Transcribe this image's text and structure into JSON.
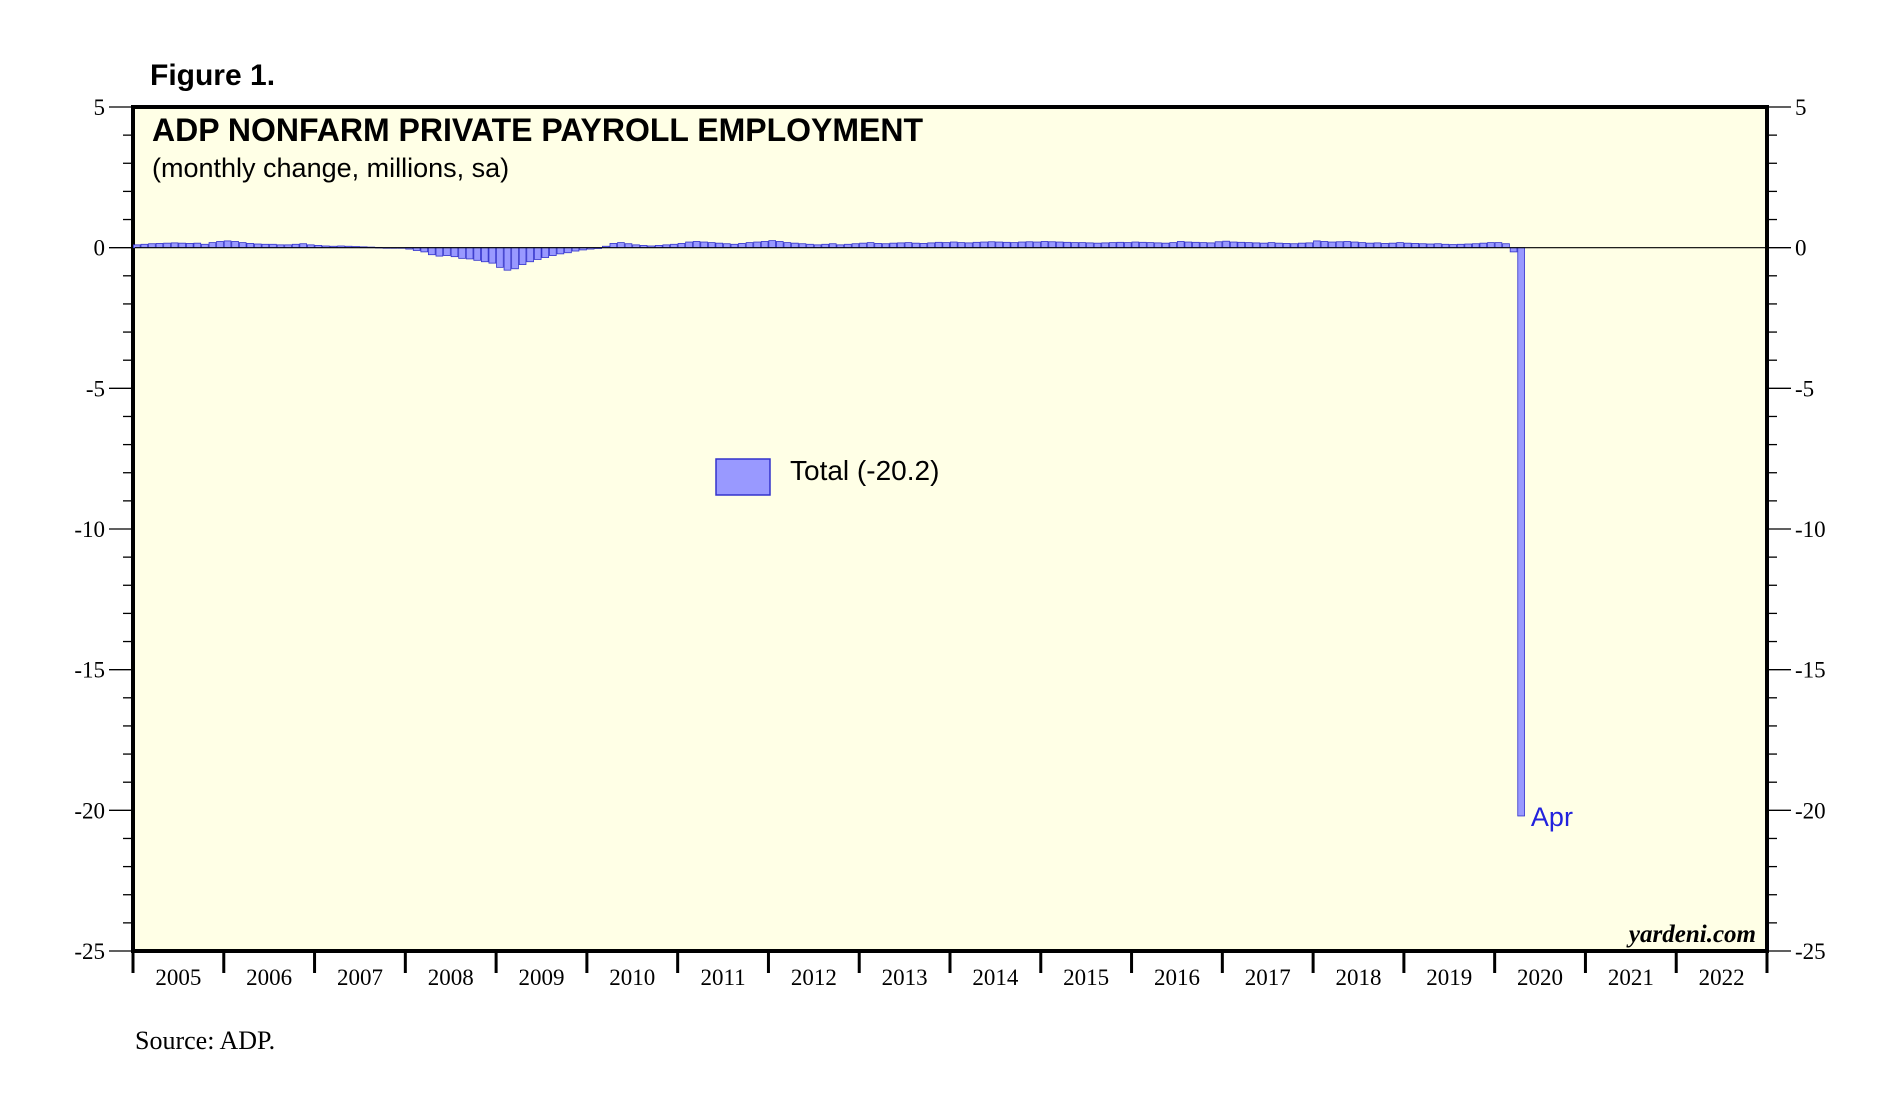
{
  "figure_label": "Figure 1.",
  "source": "Source: ADP.",
  "watermark": "yardeni.com",
  "colors": {
    "plot_background": "#ffffe6",
    "bar_fill": "#9999ff",
    "bar_stroke": "#3333cc",
    "annotation": "#2222dd",
    "axis": "#000000"
  },
  "chart_data": {
    "type": "bar",
    "title": "ADP NONFARM PRIVATE PAYROLL EMPLOYMENT",
    "subtitle": "(monthly change, millions, sa)",
    "xlabel": "",
    "ylabel": "",
    "ylim": [
      -25,
      5
    ],
    "yticks": [
      5,
      0,
      -5,
      -10,
      -15,
      -20,
      -25
    ],
    "ytick_labels": [
      "5",
      "0",
      "-5",
      "-10",
      "-15",
      "-20",
      "-25"
    ],
    "x_range": [
      "2005-01",
      "2022-12"
    ],
    "year_labels": [
      "2005",
      "2006",
      "2007",
      "2008",
      "2009",
      "2010",
      "2011",
      "2012",
      "2013",
      "2014",
      "2015",
      "2016",
      "2017",
      "2018",
      "2019",
      "2020",
      "2021",
      "2022"
    ],
    "grid": false,
    "legend": {
      "position": "center-left",
      "entries": [
        "Total (-20.2)"
      ]
    },
    "annotations": [
      {
        "text": "Apr",
        "x": "2020-04",
        "y": -20.2
      }
    ],
    "series": [
      {
        "name": "Total (-20.2)",
        "start": "2005-01",
        "values": [
          0.1,
          0.12,
          0.14,
          0.15,
          0.16,
          0.17,
          0.16,
          0.15,
          0.16,
          0.12,
          0.18,
          0.22,
          0.24,
          0.22,
          0.18,
          0.15,
          0.13,
          0.12,
          0.12,
          0.1,
          0.1,
          0.12,
          0.14,
          0.1,
          0.08,
          0.06,
          0.05,
          0.06,
          0.05,
          0.04,
          0.03,
          0.02,
          0.01,
          -0.01,
          0.0,
          -0.02,
          -0.05,
          -0.1,
          -0.15,
          -0.25,
          -0.3,
          -0.28,
          -0.32,
          -0.38,
          -0.4,
          -0.45,
          -0.5,
          -0.55,
          -0.7,
          -0.8,
          -0.75,
          -0.6,
          -0.5,
          -0.42,
          -0.35,
          -0.28,
          -0.22,
          -0.18,
          -0.12,
          -0.08,
          -0.05,
          -0.03,
          0.05,
          0.15,
          0.18,
          0.14,
          0.1,
          0.08,
          0.06,
          0.08,
          0.1,
          0.12,
          0.15,
          0.2,
          0.22,
          0.2,
          0.18,
          0.16,
          0.14,
          0.12,
          0.15,
          0.18,
          0.2,
          0.22,
          0.25,
          0.22,
          0.18,
          0.16,
          0.14,
          0.12,
          0.1,
          0.12,
          0.14,
          0.1,
          0.12,
          0.14,
          0.16,
          0.18,
          0.15,
          0.14,
          0.16,
          0.17,
          0.18,
          0.16,
          0.15,
          0.17,
          0.19,
          0.18,
          0.2,
          0.18,
          0.17,
          0.19,
          0.2,
          0.21,
          0.2,
          0.19,
          0.18,
          0.2,
          0.21,
          0.2,
          0.22,
          0.21,
          0.2,
          0.19,
          0.18,
          0.18,
          0.17,
          0.16,
          0.17,
          0.18,
          0.19,
          0.18,
          0.2,
          0.19,
          0.18,
          0.17,
          0.16,
          0.18,
          0.22,
          0.2,
          0.19,
          0.18,
          0.17,
          0.21,
          0.23,
          0.2,
          0.19,
          0.18,
          0.17,
          0.16,
          0.18,
          0.16,
          0.15,
          0.14,
          0.16,
          0.17,
          0.24,
          0.22,
          0.2,
          0.21,
          0.22,
          0.2,
          0.18,
          0.16,
          0.17,
          0.15,
          0.16,
          0.18,
          0.16,
          0.15,
          0.14,
          0.13,
          0.14,
          0.12,
          0.11,
          0.12,
          0.13,
          0.14,
          0.16,
          0.18,
          0.18,
          0.14,
          -0.15,
          -20.2
        ]
      }
    ]
  }
}
